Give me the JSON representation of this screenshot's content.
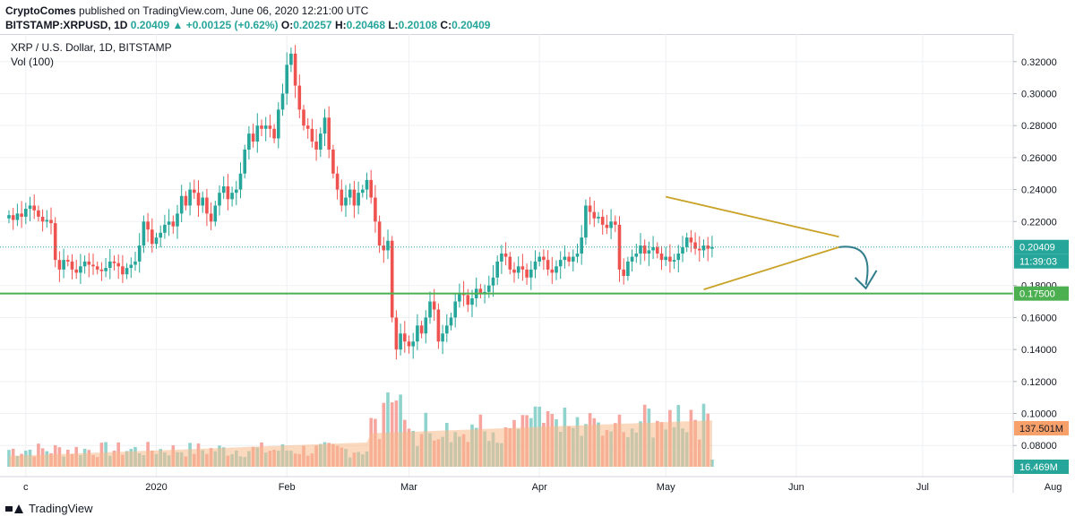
{
  "header": {
    "publisher": "CryptoComes",
    "published_text": " published on TradingView.com, June 06, 2020 12:21:00 UTC",
    "symbol": "BITSTAMP:XRPUSD, 1D",
    "last": "0.20409",
    "change": "+0.00125 (+0.62%)",
    "o_label": "O:",
    "o_val": "0.20257",
    "h_label": "H:",
    "h_val": "0.20468",
    "l_label": "L:",
    "l_val": "0.20108",
    "c_label": "C:",
    "c_val": "0.20409"
  },
  "legend": {
    "series": "XRP / U.S. Dollar, 1D, BITSTAMP",
    "volume": "Vol (100)"
  },
  "footer": {
    "brand": "TradingView"
  },
  "colors": {
    "up": "#26a69a",
    "down": "#ef5350",
    "vol_up": "#8fd3cc",
    "vol_down": "#f6a59f",
    "support": "#4caf50",
    "triangle": "#c9a227",
    "arrow": "#2f7d8c",
    "vol_ma": "#f7b98a"
  },
  "chart_data": {
    "type": "candlestick",
    "symbol": "XRPUSD",
    "x_tick_labels": [
      "Dec",
      "2020",
      "Feb",
      "Mar",
      "Apr",
      "May",
      "Jun",
      "Jul",
      "Aug"
    ],
    "x_tick_dates": [
      "2019-12-01",
      "2020-01-01",
      "2020-02-01",
      "2020-03-01",
      "2020-04-01",
      "2020-05-01",
      "2020-06-01",
      "2020-07-01",
      "2020-08-01"
    ],
    "x_tick_display": [
      "c",
      "2020",
      "Feb",
      "Mar",
      "Apr",
      "May",
      "Jun",
      "Jul",
      "Aug"
    ],
    "y_ticks": [
      "0.32000",
      "0.30000",
      "0.28000",
      "0.26000",
      "0.24000",
      "0.22000",
      "0.18000",
      "0.16000",
      "0.14000",
      "0.12000",
      "0.10000",
      "0.08000"
    ],
    "ylim": [
      0.065,
      0.335
    ],
    "price_labels": {
      "last": "0.20409",
      "countdown": "11:39:03",
      "support": "0.17500",
      "volume_ma": "137.501M",
      "volume_last": "16.469M"
    },
    "support_level": 0.175,
    "last_price": 0.20409,
    "closes": [
      0.224,
      0.221,
      0.225,
      0.223,
      0.228,
      0.23,
      0.227,
      0.223,
      0.22,
      0.221,
      0.219,
      0.196,
      0.19,
      0.196,
      0.195,
      0.19,
      0.188,
      0.192,
      0.195,
      0.193,
      0.192,
      0.19,
      0.189,
      0.191,
      0.195,
      0.194,
      0.192,
      0.187,
      0.191,
      0.193,
      0.195,
      0.205,
      0.22,
      0.215,
      0.206,
      0.21,
      0.213,
      0.218,
      0.22,
      0.217,
      0.225,
      0.236,
      0.23,
      0.24,
      0.238,
      0.23,
      0.235,
      0.225,
      0.22,
      0.23,
      0.238,
      0.242,
      0.234,
      0.238,
      0.24,
      0.25,
      0.265,
      0.275,
      0.27,
      0.28,
      0.278,
      0.28,
      0.278,
      0.272,
      0.29,
      0.3,
      0.318,
      0.325,
      0.305,
      0.29,
      0.28,
      0.278,
      0.27,
      0.265,
      0.275,
      0.285,
      0.265,
      0.25,
      0.24,
      0.23,
      0.235,
      0.24,
      0.23,
      0.238,
      0.24,
      0.246,
      0.235,
      0.22,
      0.205,
      0.202,
      0.208,
      0.16,
      0.14,
      0.15,
      0.145,
      0.142,
      0.145,
      0.155,
      0.15,
      0.16,
      0.17,
      0.165,
      0.145,
      0.15,
      0.155,
      0.16,
      0.17,
      0.175,
      0.174,
      0.168,
      0.172,
      0.178,
      0.175,
      0.176,
      0.18,
      0.185,
      0.195,
      0.2,
      0.198,
      0.19,
      0.188,
      0.192,
      0.19,
      0.185,
      0.19,
      0.195,
      0.198,
      0.196,
      0.19,
      0.188,
      0.192,
      0.196,
      0.198,
      0.195,
      0.198,
      0.2,
      0.21,
      0.23,
      0.226,
      0.222,
      0.223,
      0.218,
      0.216,
      0.22,
      0.218,
      0.19,
      0.186,
      0.195,
      0.198,
      0.2,
      0.205,
      0.2,
      0.202,
      0.204,
      0.2,
      0.196,
      0.198,
      0.195,
      0.196,
      0.2,
      0.204,
      0.21,
      0.207,
      0.203,
      0.202,
      0.205,
      0.203,
      0.2041
    ],
    "volume_moving_average": 137.501,
    "volume_last": 16.469
  }
}
